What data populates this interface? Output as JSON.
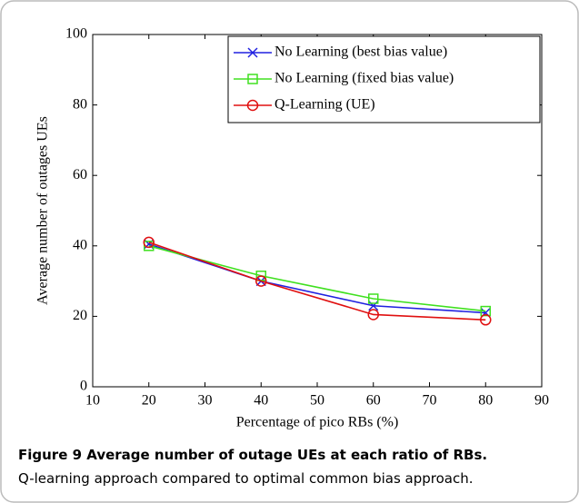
{
  "chart_data": {
    "type": "line",
    "xlabel": "Percentage of pico RBs (%)",
    "ylabel": "Average number of outages UEs",
    "x": [
      20,
      40,
      60,
      80
    ],
    "series": [
      {
        "name": "No Learning (best bias value)",
        "color": "#2020e0",
        "marker": "x",
        "values": [
          40.5,
          30,
          23,
          21
        ]
      },
      {
        "name": "No Learning (fixed bias value)",
        "color": "#40e020",
        "marker": "square",
        "values": [
          40,
          31.5,
          25,
          21.5
        ]
      },
      {
        "name": "Q-Learning (UE)",
        "color": "#e01010",
        "marker": "circle",
        "values": [
          41,
          30,
          20.5,
          19
        ]
      }
    ],
    "xlim": [
      10,
      90
    ],
    "xticks": [
      10,
      20,
      30,
      40,
      50,
      60,
      70,
      80,
      90
    ],
    "ylim": [
      0,
      100
    ],
    "yticks": [
      0,
      20,
      40,
      60,
      80,
      100
    ],
    "legend": "upper right"
  },
  "caption": {
    "label": "Figure 9 Average number of outage UEs at each ratio of RBs.",
    "text": "Q-learning approach compared to optimal common bias approach."
  }
}
